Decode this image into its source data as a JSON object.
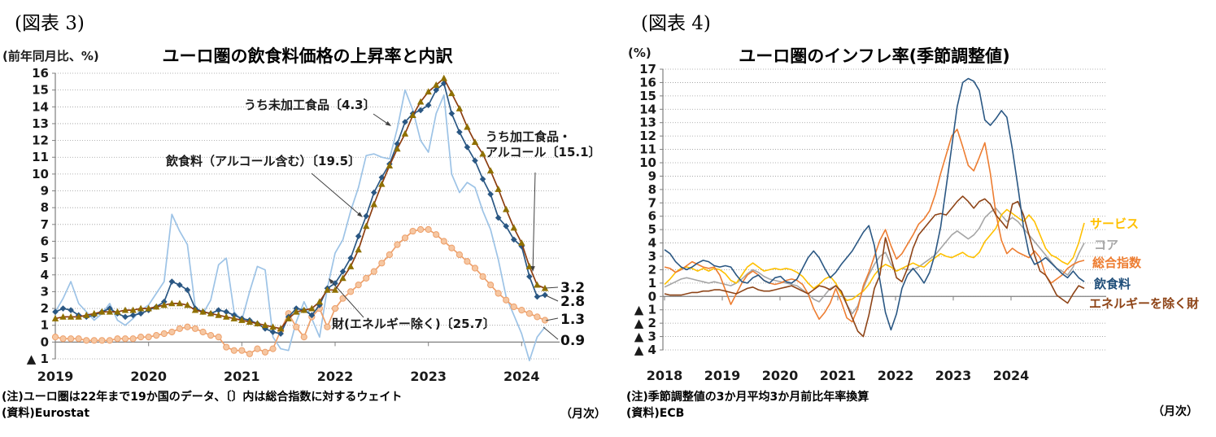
{
  "figure3": {
    "tag": "(図表 3)",
    "axis_unit_label": "(前年同月比、%)",
    "title": "ユーロ圏の飲食料価格の上昇率と内訳",
    "annotations": {
      "unprocessed": "うち未加工食品〔4.3〕",
      "food": "飲食料（アルコール含む）〔19.5〕",
      "processed_line1": "うち加工食品・",
      "processed_line2": "アルコール〔15.1〕",
      "goods": "財(エネルギー除く)〔25.7〕"
    },
    "end_labels": {
      "processed": "3.2",
      "food": "2.8",
      "goods": "1.3",
      "unprocessed": "0.9"
    },
    "note_line1": "(注)ユーロ圏は22年まで19か国のデータ、〔〕内は総合指数に対するウェイト",
    "note_line2": "(資料)Eurostat",
    "frequency_label": "（月次）"
  },
  "figure4": {
    "tag": "(図表 4)",
    "axis_unit_label": "(%)",
    "title": "ユーロ圏のインフレ率(季節調整値)",
    "legend": [
      {
        "label": "サービス",
        "color": "#FFC000"
      },
      {
        "label": "コア",
        "color": "#A6A6A6"
      },
      {
        "label": "総合指数",
        "color": "#ED7D31"
      },
      {
        "label": "飲食料",
        "color": "#1F4E79"
      },
      {
        "label": "エネルギーを除く財",
        "color": "#8E4417"
      }
    ],
    "note_line1": "(注)季節調整値の3か月平均3か月前比年率換算",
    "note_line2": "(資料)ECB",
    "frequency_label": "（月次）"
  },
  "chart_data": [
    {
      "type": "line",
      "title": "ユーロ圏の飲食料価格の上昇率と内訳",
      "xlabel": "月次 (2019-01 〜 2024-04)",
      "ylabel": "前年同月比、%",
      "ylim": [
        -1,
        16
      ],
      "grid": true,
      "x_tick_labels": [
        "2019",
        "2020",
        "2021",
        "2022",
        "2023",
        "2024"
      ],
      "series": [
        {
          "id": "unprocessed",
          "name": "うち未加工食品〔4.3〕",
          "color": "#9DC3E6",
          "marker": null,
          "end_value": 0.9,
          "values": [
            1.8,
            2.6,
            3.6,
            2.3,
            1.8,
            1.3,
            1.7,
            2.3,
            1.3,
            1.0,
            1.4,
            1.9,
            2.2,
            2.9,
            3.6,
            7.6,
            6.6,
            5.8,
            2.1,
            1.7,
            2.5,
            4.6,
            5.0,
            1.8,
            1.3,
            3.0,
            4.5,
            4.3,
            0.3,
            -0.4,
            -0.5,
            1.2,
            2.4,
            1.4,
            0.3,
            3.2,
            5.3,
            6.1,
            7.8,
            9.2,
            11.1,
            11.2,
            11.0,
            10.9,
            12.7,
            15.0,
            13.8,
            12.0,
            11.3,
            13.6,
            14.7,
            10.0,
            8.9,
            9.5,
            9.2,
            7.8,
            6.7,
            4.9,
            2.7,
            1.6,
            0.5,
            -1.1,
            0.3,
            0.9
          ]
        },
        {
          "id": "goods_ex_energy",
          "name": "財(エネルギー除く)〔25.7〕",
          "color": "#EDA06B",
          "marker": "circle",
          "marker_color": "#F6C7A2",
          "end_value": 1.3,
          "values": [
            0.3,
            0.2,
            0.2,
            0.2,
            0.1,
            0.1,
            0.1,
            0.1,
            0.2,
            0.2,
            0.2,
            0.3,
            0.3,
            0.4,
            0.5,
            0.6,
            0.8,
            0.9,
            0.8,
            0.6,
            0.4,
            0.3,
            -0.3,
            -0.5,
            -0.5,
            -0.7,
            -0.4,
            -0.6,
            -0.4,
            0.7,
            1.7,
            0.9,
            0.3,
            1.5,
            2.0,
            0.9,
            2.0,
            2.6,
            3.0,
            3.4,
            3.8,
            4.2,
            4.7,
            5.2,
            5.8,
            6.2,
            6.6,
            6.7,
            6.7,
            6.4,
            6.0,
            5.6,
            5.2,
            4.8,
            4.4,
            3.9,
            3.4,
            2.9,
            2.5,
            2.1,
            1.9,
            1.7,
            1.5,
            1.3
          ]
        },
        {
          "id": "food",
          "name": "飲食料（アルコール含む）〔19.5〕",
          "color": "#2A5783",
          "marker": "diamond",
          "end_value": 2.8,
          "values": [
            1.8,
            2.0,
            1.9,
            1.6,
            1.5,
            1.6,
            1.8,
            2.0,
            1.7,
            1.5,
            1.6,
            1.7,
            1.9,
            2.1,
            2.4,
            3.6,
            3.4,
            3.1,
            2.0,
            1.8,
            1.7,
            1.9,
            1.8,
            1.6,
            1.4,
            1.3,
            1.1,
            0.8,
            0.6,
            0.5,
            1.5,
            2.0,
            1.9,
            1.6,
            2.2,
            3.2,
            3.5,
            4.2,
            5.0,
            6.3,
            7.5,
            8.9,
            9.8,
            10.6,
            11.8,
            13.1,
            13.6,
            13.8,
            14.1,
            15.0,
            15.4,
            13.6,
            12.5,
            11.6,
            10.8,
            9.7,
            8.8,
            7.4,
            6.9,
            6.1,
            5.7,
            3.9,
            2.7,
            2.8
          ]
        },
        {
          "id": "processed",
          "name": "うち加工食品・アルコール〔15.1〕",
          "color": "#8C3D10",
          "marker": "triangle",
          "marker_color": "#8F7000",
          "end_value": 3.2,
          "values": [
            1.4,
            1.5,
            1.5,
            1.5,
            1.6,
            1.7,
            1.8,
            1.8,
            1.8,
            1.9,
            1.9,
            2.0,
            2.0,
            2.1,
            2.2,
            2.3,
            2.3,
            2.2,
            1.9,
            1.8,
            1.7,
            1.6,
            1.5,
            1.4,
            1.3,
            1.2,
            1.1,
            1.0,
            0.9,
            0.8,
            1.4,
            1.8,
            1.9,
            2.0,
            2.4,
            3.1,
            3.1,
            3.8,
            4.5,
            5.5,
            6.9,
            8.2,
            9.4,
            10.5,
            11.5,
            12.4,
            13.5,
            14.3,
            14.9,
            15.3,
            15.7,
            14.8,
            13.9,
            12.8,
            11.9,
            11.2,
            10.2,
            9.1,
            7.9,
            6.8,
            5.9,
            4.5,
            3.4,
            3.2
          ]
        }
      ]
    },
    {
      "type": "line",
      "title": "ユーロ圏のインフレ率(季節調整値)",
      "xlabel": "月次 (2018-01 〜 2024-05)",
      "ylabel": "%",
      "ylim": [
        -4,
        17
      ],
      "grid": true,
      "legend_position": "right",
      "x_tick_labels": [
        "2018",
        "2019",
        "2020",
        "2021",
        "2022",
        "2023",
        "2024"
      ],
      "series": [
        {
          "id": "core",
          "name": "コア",
          "color": "#A6A6A6",
          "values": [
            0.7,
            0.9,
            1.1,
            1.3,
            1.4,
            1.3,
            1.2,
            1.1,
            1.0,
            1.1,
            1.0,
            0.9,
            0.8,
            1.0,
            1.3,
            1.7,
            2.0,
            1.8,
            1.5,
            1.3,
            1.2,
            1.1,
            1.0,
            0.9,
            0.8,
            0.5,
            0.2,
            -0.2,
            -0.4,
            0.1,
            0.6,
            0.8,
            0.2,
            -0.6,
            -1.3,
            -0.7,
            0.6,
            1.6,
            2.4,
            3.0,
            3.3,
            2.4,
            1.9,
            2.1,
            2.0,
            2.0,
            2.2,
            2.5,
            2.8,
            3.1,
            3.6,
            4.1,
            4.6,
            4.9,
            4.6,
            4.3,
            4.6,
            5.1,
            5.9,
            6.3,
            6.6,
            6.1,
            5.6,
            5.9,
            5.6,
            5.1,
            4.6,
            4.1,
            3.6,
            3.1,
            2.6,
            2.1,
            1.9,
            1.6,
            2.2,
            3.2,
            4.0
          ]
        },
        {
          "id": "services",
          "name": "サービス",
          "color": "#FFC000",
          "values": [
            0.9,
            1.3,
            1.8,
            2.1,
            2.2,
            2.1,
            1.9,
            2.1,
            1.9,
            2.1,
            2.0,
            1.7,
            1.2,
            1.0,
            1.6,
            2.2,
            2.5,
            2.2,
            1.9,
            2.0,
            2.1,
            2.0,
            2.1,
            2.0,
            1.8,
            1.5,
            1.0,
            0.6,
            0.9,
            1.3,
            1.5,
            1.0,
            0.2,
            -0.3,
            -0.2,
            0.1,
            0.4,
            0.9,
            1.6,
            2.1,
            2.4,
            2.2,
            1.9,
            2.1,
            2.3,
            2.5,
            2.3,
            2.2,
            2.6,
            2.9,
            3.2,
            3.0,
            2.9,
            3.1,
            3.3,
            3.0,
            2.9,
            3.3,
            4.1,
            4.6,
            5.1,
            6.1,
            6.5,
            6.2,
            5.9,
            5.6,
            6.1,
            5.6,
            4.6,
            3.6,
            3.1,
            2.9,
            2.6,
            2.4,
            2.9,
            4.0,
            5.5
          ]
        },
        {
          "id": "headline",
          "name": "総合指数",
          "color": "#ED7D31",
          "values": [
            2.2,
            2.1,
            1.8,
            2.0,
            2.3,
            2.6,
            2.4,
            2.2,
            2.1,
            2.2,
            1.6,
            0.5,
            -0.6,
            0.2,
            1.0,
            1.6,
            1.9,
            1.6,
            1.2,
            1.0,
            0.9,
            1.0,
            1.2,
            1.3,
            1.2,
            0.9,
            0.2,
            -0.9,
            -1.7,
            -1.2,
            -0.5,
            0.6,
            -0.4,
            -1.6,
            -1.9,
            -0.9,
            0.8,
            1.8,
            3.0,
            4.2,
            5.0,
            3.8,
            2.8,
            3.2,
            3.9,
            4.6,
            5.4,
            5.8,
            6.4,
            7.6,
            9.2,
            10.6,
            12.0,
            12.5,
            11.2,
            9.8,
            9.4,
            10.4,
            11.5,
            9.2,
            6.2,
            4.2,
            3.2,
            3.6,
            3.3,
            3.1,
            2.9,
            3.4,
            2.9,
            1.6,
            1.0,
            1.3,
            1.6,
            2.1,
            2.4,
            2.6,
            2.7
          ]
        },
        {
          "id": "goods_ex_energy",
          "name": "エネルギーを除く財",
          "color": "#8E4417",
          "values": [
            0.2,
            0.1,
            0.1,
            0.1,
            0.2,
            0.3,
            0.3,
            0.4,
            0.4,
            0.5,
            0.5,
            0.4,
            0.3,
            0.2,
            0.4,
            0.6,
            0.7,
            0.5,
            0.4,
            0.4,
            0.5,
            0.6,
            0.7,
            0.8,
            0.6,
            0.4,
            0.2,
            0.5,
            0.8,
            0.7,
            0.5,
            0.8,
            0.4,
            -0.6,
            -1.6,
            -2.6,
            -3.0,
            -1.4,
            0.6,
            1.6,
            4.4,
            2.9,
            1.4,
            1.1,
            2.1,
            3.6,
            4.6,
            5.1,
            5.6,
            6.1,
            6.2,
            6.1,
            6.6,
            7.1,
            7.5,
            7.1,
            6.6,
            7.1,
            7.3,
            6.9,
            6.1,
            5.6,
            5.1,
            6.9,
            7.1,
            6.1,
            4.6,
            3.1,
            1.9,
            1.6,
            0.9,
            0.1,
            -0.2,
            -0.5,
            0.2,
            0.8,
            0.6
          ]
        },
        {
          "id": "food",
          "name": "飲食料",
          "color": "#2A5783",
          "values": [
            3.5,
            3.2,
            2.6,
            2.2,
            2.0,
            2.2,
            2.5,
            2.7,
            2.6,
            2.3,
            2.2,
            2.3,
            2.2,
            1.6,
            1.1,
            1.0,
            1.4,
            1.6,
            1.2,
            1.0,
            1.4,
            1.5,
            1.1,
            1.0,
            1.3,
            2.1,
            2.9,
            3.4,
            2.9,
            2.1,
            1.4,
            1.8,
            2.4,
            2.9,
            3.4,
            4.1,
            4.8,
            5.3,
            3.8,
            1.2,
            -1.2,
            -2.5,
            -1.3,
            0.6,
            1.6,
            2.1,
            1.6,
            1.0,
            1.8,
            3.2,
            5.2,
            8.2,
            11.2,
            14.2,
            16.0,
            16.3,
            16.1,
            15.4,
            13.2,
            12.8,
            13.3,
            13.9,
            13.4,
            11.0,
            8.2,
            5.2,
            3.2,
            2.4,
            2.6,
            2.9,
            2.5,
            2.1,
            1.7,
            1.4,
            1.9,
            1.4,
            1.1
          ]
        }
      ]
    }
  ]
}
